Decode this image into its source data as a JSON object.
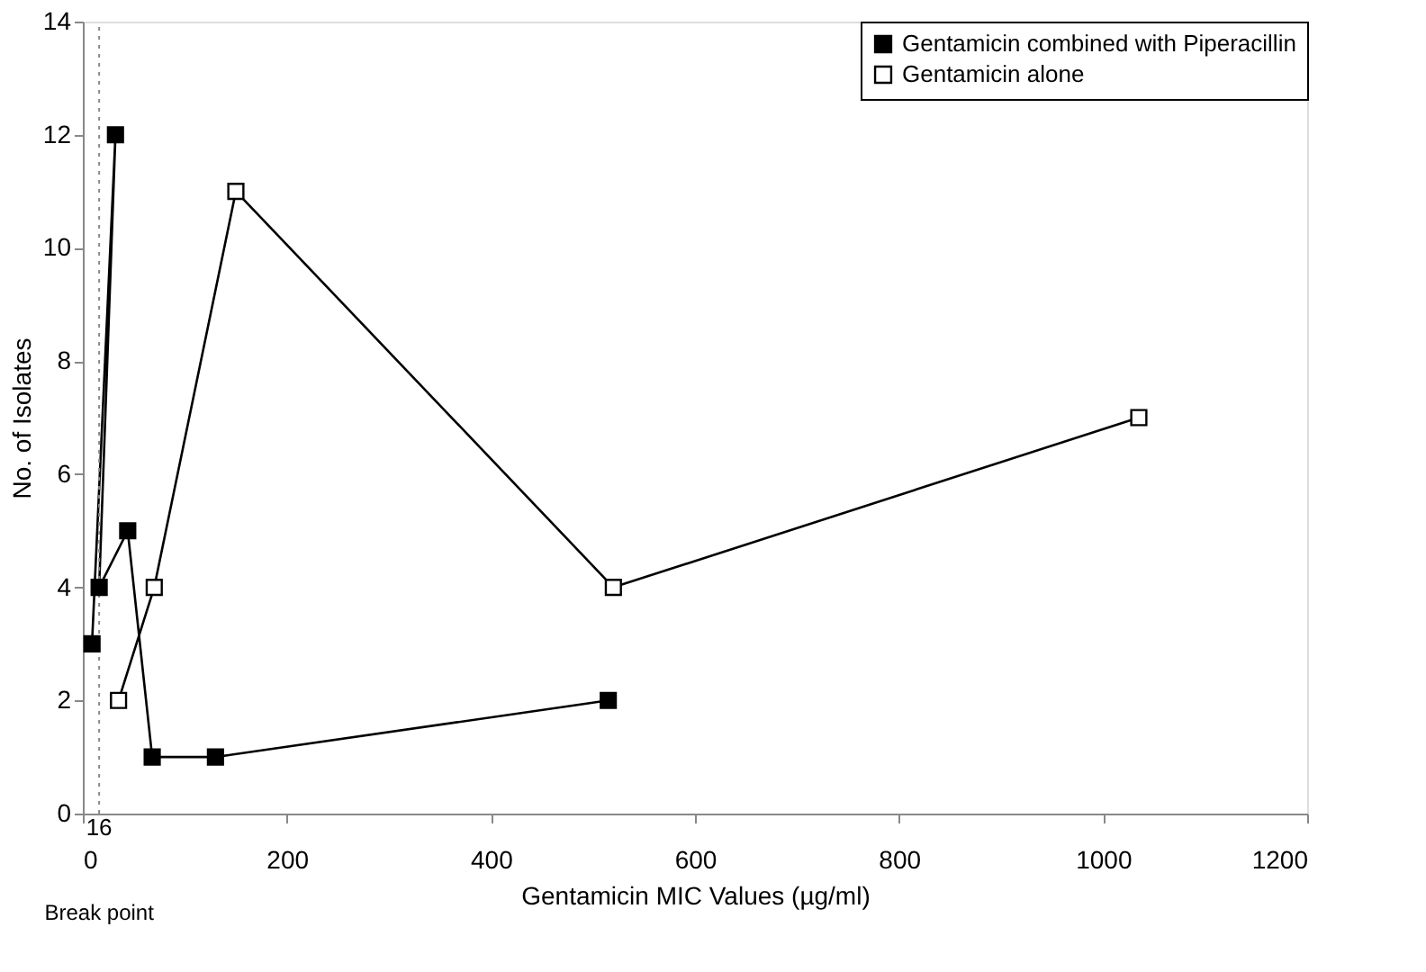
{
  "chart_data": {
    "type": "line",
    "xlabel": "Gentamicin MIC Values (µg/ml)",
    "ylabel": "No. of Isolates",
    "series": [
      {
        "name": "Gentamicin combined with Piperacillin",
        "color": "#000000",
        "marker": "square",
        "x": [
          9,
          32,
          16,
          44,
          68,
          130,
          515
        ],
        "values": [
          3,
          12,
          4,
          5,
          1,
          1,
          2
        ]
      },
      {
        "name": "Gentamicin alone",
        "color": "#000000",
        "marker": "square_open",
        "x": [
          35,
          70,
          150,
          520,
          1035
        ],
        "values": [
          2,
          4,
          11,
          4,
          7
        ]
      }
    ],
    "xlim": [
      0,
      1200
    ],
    "xticks": [
      0,
      200,
      400,
      600,
      800,
      1000,
      1200
    ],
    "ylim": [
      0,
      14
    ],
    "yticks": [
      0,
      2,
      4,
      6,
      8,
      10,
      12,
      14
    ],
    "ref_lines": [
      {
        "axis": "x",
        "value": 16,
        "label": "16",
        "line_style": "dotted",
        "color": "#888888"
      }
    ],
    "annotations": [
      "Break point"
    ],
    "grid": false,
    "legend": "top right"
  }
}
